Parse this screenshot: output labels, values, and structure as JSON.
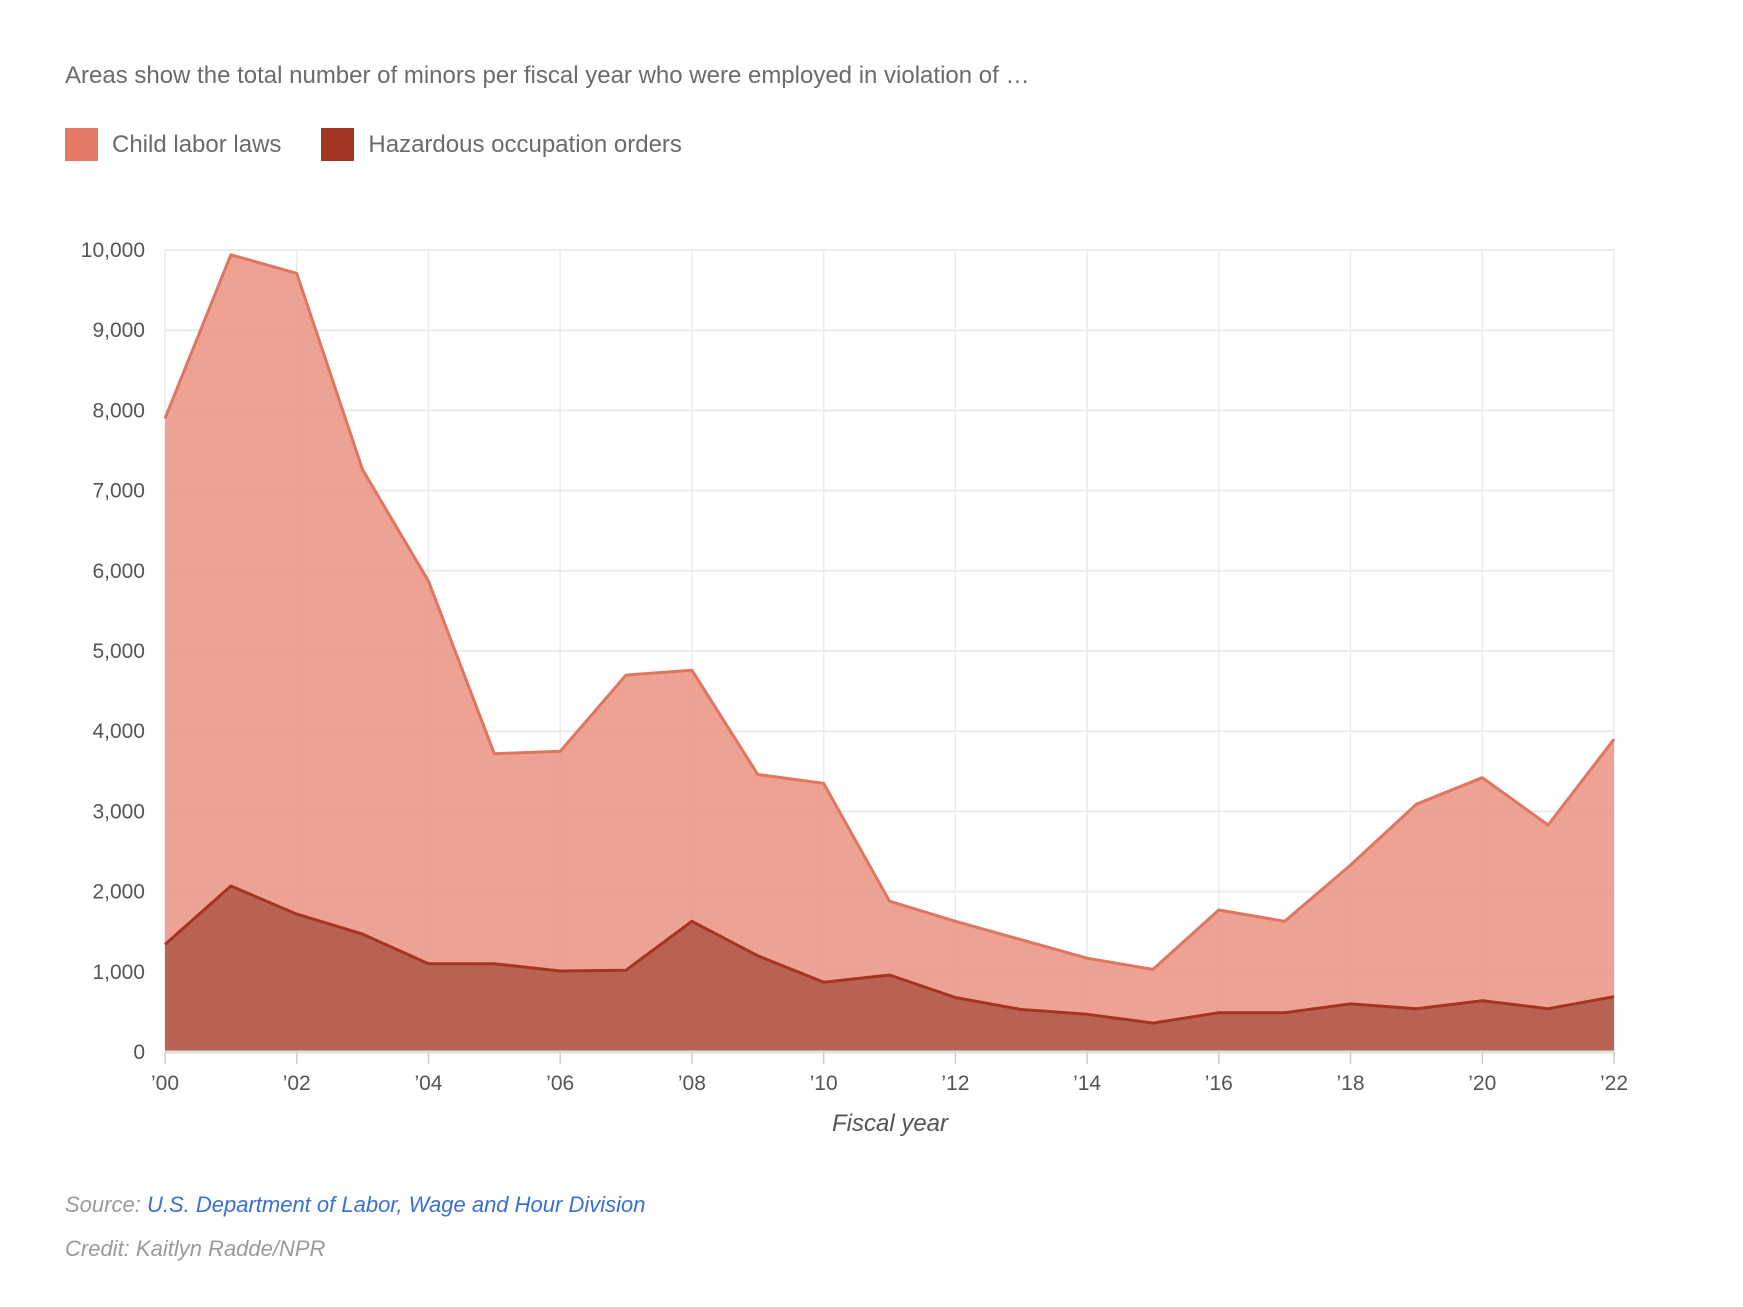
{
  "chart_data": {
    "type": "area",
    "subtitle": "Areas show the total number of minors per fiscal year who were employed in violation of …",
    "xlabel": "Fiscal year",
    "ylabel": "",
    "x": [
      2000,
      2001,
      2002,
      2003,
      2004,
      2005,
      2006,
      2007,
      2008,
      2009,
      2010,
      2011,
      2012,
      2013,
      2014,
      2015,
      2016,
      2017,
      2018,
      2019,
      2020,
      2021,
      2022
    ],
    "xlim": [
      2000,
      2022
    ],
    "ylim": [
      0,
      10000
    ],
    "x_ticks": [
      "’00",
      "’02",
      "’04",
      "’06",
      "’08",
      "’10",
      "’12",
      "’14",
      "’16",
      "’18",
      "’20",
      "’22"
    ],
    "y_ticks": [
      "0",
      "1,000",
      "2,000",
      "3,000",
      "4,000",
      "5,000",
      "6,000",
      "7,000",
      "8,000",
      "9,000",
      "10,000"
    ],
    "grid": true,
    "legend_position": "top-left",
    "series": [
      {
        "name": "Child labor laws",
        "fill": "#ec9d8d",
        "line": "#e07560",
        "swatch": "#e57864",
        "values": [
          7900,
          9940,
          9710,
          7260,
          5870,
          3720,
          3750,
          4700,
          4760,
          3460,
          3350,
          1880,
          1630,
          1400,
          1170,
          1030,
          1770,
          1630,
          2330,
          3090,
          3420,
          2830,
          3900
        ]
      },
      {
        "name": "Hazardous occupation orders",
        "fill": "#b5604e",
        "line": "#a33522",
        "swatch": "#a33522",
        "values": [
          1340,
          2070,
          1720,
          1470,
          1100,
          1100,
          1010,
          1020,
          1630,
          1200,
          870,
          960,
          680,
          530,
          470,
          360,
          490,
          490,
          600,
          540,
          640,
          540,
          690
        ]
      }
    ]
  },
  "footer": {
    "source_label": "Source:",
    "source_link": "U.S. Department of Labor, Wage and Hour Division",
    "credit": "Credit: Kaitlyn Radde/NPR"
  }
}
